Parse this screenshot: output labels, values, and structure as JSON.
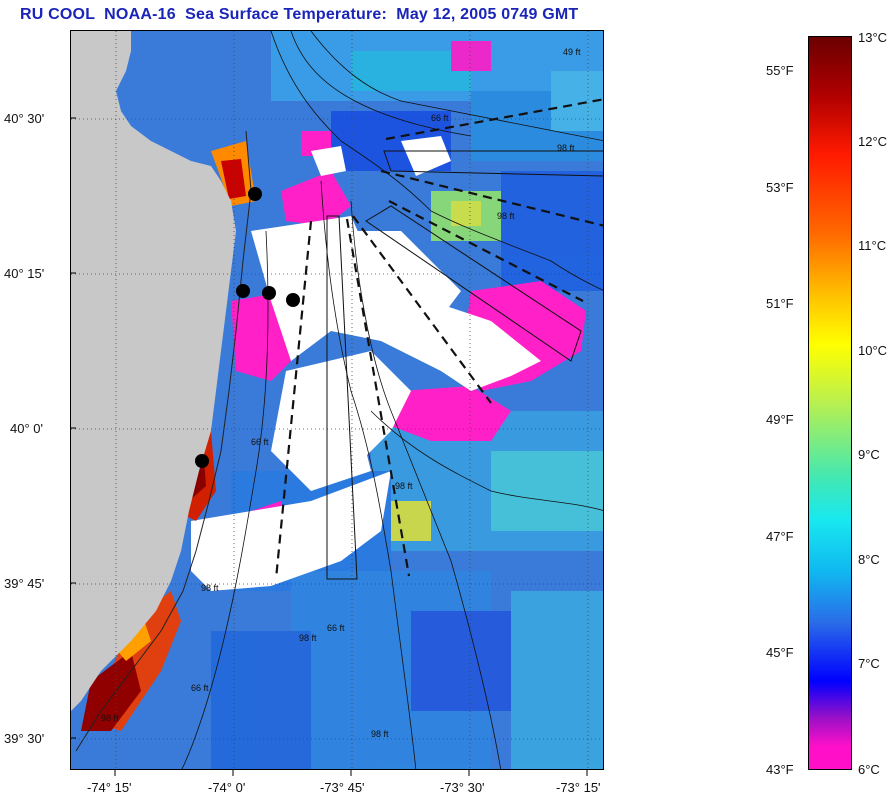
{
  "title": "RU COOL  NOAA-16  Sea Surface Temperature:  May 12, 2005 0749 GMT",
  "map": {
    "lat_labels": [
      "40° 30'",
      "40° 15'",
      "40° 0'",
      "39° 45'",
      "39° 30'"
    ],
    "lon_labels": [
      "-74° 15'",
      "-74° 0'",
      "-73° 45'",
      "-73° 30'",
      "-73° 15'"
    ],
    "depth_labels": [
      "49 ft",
      "66 ft",
      "98 ft",
      "98 ft",
      "66 ft",
      "98 ft",
      "66 ft",
      "98 ft",
      "66 ft",
      "98 ft",
      "98 ft",
      "98 ft"
    ],
    "colors": {
      "land": "#c8c8c8",
      "cloud": "#ffffff",
      "warm": "#a00000",
      "cold": "#ff20c8",
      "ocean": "#3a7ad8"
    },
    "station_count": 5
  },
  "colorbar": {
    "celsius_labels": [
      "13°C",
      "12°C",
      "11°C",
      "10°C",
      "9°C",
      "8°C",
      "7°C",
      "6°C"
    ],
    "fahrenheit_labels": [
      "55°F",
      "53°F",
      "51°F",
      "49°F",
      "47°F",
      "45°F",
      "43°F"
    ]
  }
}
